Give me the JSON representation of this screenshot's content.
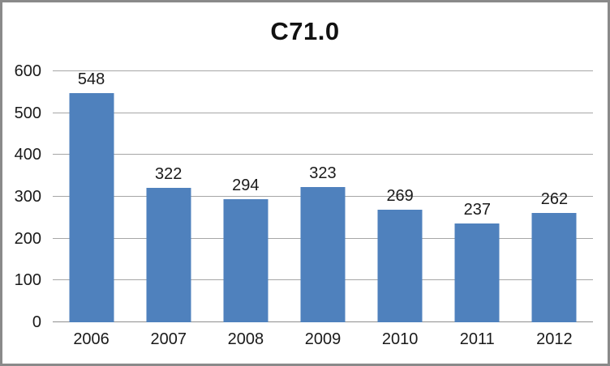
{
  "chart_data": {
    "type": "bar",
    "title": "C71.0",
    "categories": [
      "2006",
      "2007",
      "2008",
      "2009",
      "2010",
      "2011",
      "2012"
    ],
    "values": [
      548,
      322,
      294,
      323,
      269,
      237,
      262
    ],
    "xlabel": "",
    "ylabel": "",
    "ylim": [
      0,
      600
    ],
    "yticks": [
      0,
      100,
      200,
      300,
      400,
      500,
      600
    ],
    "grid": true,
    "legend": false,
    "data_labels": true,
    "bar_color": "#4f81bd",
    "gridline_color": "#a6a6a6",
    "axis_line_color": "#8f8f8f",
    "text_color": "#1a1a1a"
  }
}
